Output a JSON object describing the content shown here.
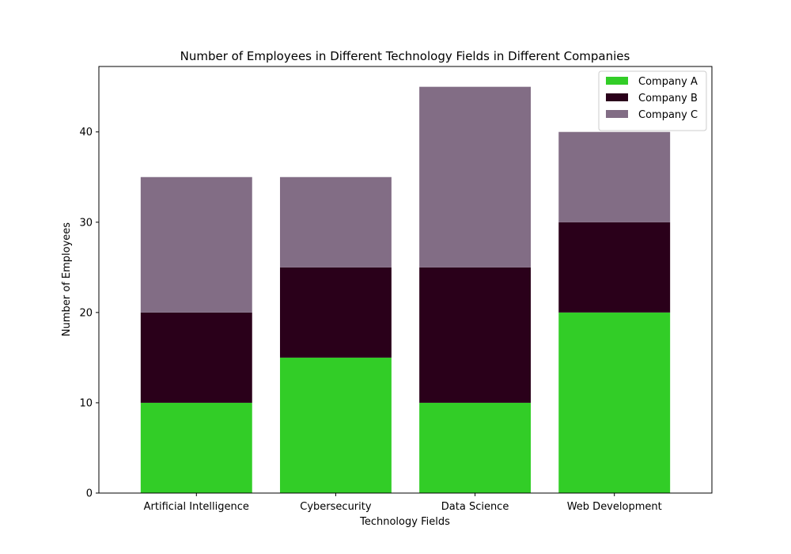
{
  "chart_data": {
    "type": "bar",
    "stacked": true,
    "title": "Number of Employees in Different Technology Fields in Different Companies",
    "xlabel": "Technology Fields",
    "ylabel": "Number of Employees",
    "categories": [
      "Artificial Intelligence",
      "Cybersecurity",
      "Data Science",
      "Web Development"
    ],
    "series": [
      {
        "name": "Company A",
        "color": "#32cd27",
        "values": [
          10,
          15,
          10,
          20
        ]
      },
      {
        "name": "Company B",
        "color": "#2a001a",
        "values": [
          10,
          10,
          15,
          10
        ]
      },
      {
        "name": "Company C",
        "color": "#826d85",
        "values": [
          15,
          10,
          20,
          10
        ]
      }
    ],
    "ylim": [
      0,
      47.25
    ],
    "yticks": [
      0,
      10,
      20,
      30,
      40
    ],
    "grid": false,
    "legend_position": "top-right"
  }
}
